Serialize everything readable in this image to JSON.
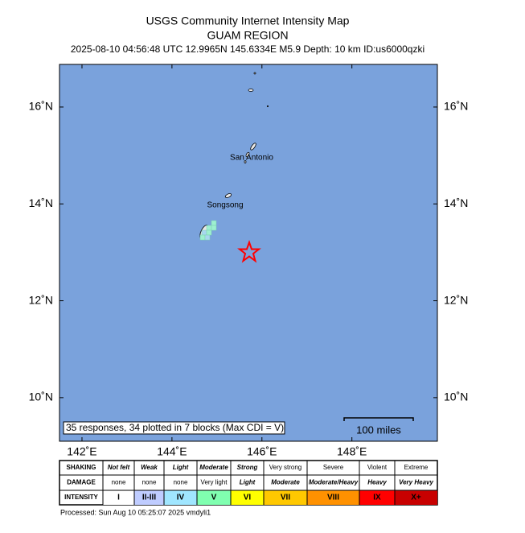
{
  "header": {
    "title": "USGS Community Internet Intensity Map",
    "region": "GUAM REGION",
    "details": "2025-08-10 04:56:48 UTC 12.9965N 145.6334E M5.9 Depth: 10 km ID:us6000qzki"
  },
  "map": {
    "lon_range": [
      141.5,
      149.9
    ],
    "lat_range": [
      9.1,
      16.88
    ],
    "lon_ticks": [
      {
        "value": 142,
        "label": "142˚E"
      },
      {
        "value": 144,
        "label": "144˚E"
      },
      {
        "value": 146,
        "label": "146˚E"
      },
      {
        "value": 148,
        "label": "148˚E"
      }
    ],
    "lat_ticks": [
      {
        "value": 16,
        "label": "16˚N"
      },
      {
        "value": 14,
        "label": "14˚N"
      },
      {
        "value": 12,
        "label": "12˚N"
      },
      {
        "value": 10,
        "label": "10˚N"
      }
    ],
    "places": [
      "San Antonio",
      "Songsong"
    ],
    "responses_note": "35 responses, 34 plotted in 7 blocks (Max CDI = V)",
    "scale_label": "100 miles"
  },
  "legend": {
    "row_labels": [
      "SHAKING",
      "DAMAGE",
      "INTENSITY"
    ],
    "shaking": [
      "Not felt",
      "Weak",
      "Light",
      "Moderate",
      "Strong",
      "Very strong",
      "Severe",
      "Violent",
      "Extreme"
    ],
    "damage": [
      "none",
      "none",
      "none",
      "Very light",
      "Light",
      "Moderate",
      "Moderate/Heavy",
      "Heavy",
      "Very Heavy"
    ],
    "intensity": [
      "I",
      "II-III",
      "IV",
      "V",
      "VI",
      "VII",
      "VIII",
      "IX",
      "X+"
    ]
  },
  "footer": "Processed: Sun Aug 10 05:25:07 2025 vmdyli1"
}
